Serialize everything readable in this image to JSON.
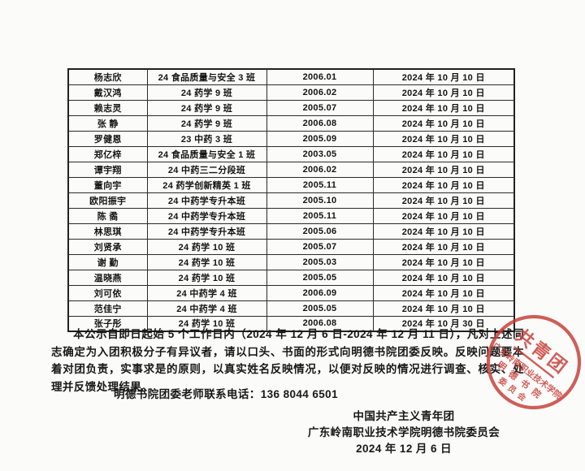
{
  "accent_colors": {
    "stamp_red": "#c63c35",
    "ink": "#181818",
    "table_border": "#2a2a2a",
    "page_bg": "#fbfbfa"
  },
  "table": {
    "columns": [
      "name",
      "class",
      "birth",
      "date"
    ],
    "rows": [
      {
        "name": "杨志欣",
        "class_name": "24 食品质量与安全 3 班",
        "birth": "2006.01",
        "date": "2024 年 10 月 10 日"
      },
      {
        "name": "戴汉鸿",
        "class_name": "24 药学 9 班",
        "birth": "2006.02",
        "date": "2024 年 10 月 10 日"
      },
      {
        "name": "赖志灵",
        "class_name": "24 药学 9 班",
        "birth": "2005.07",
        "date": "2024 年 10 月 10 日"
      },
      {
        "name": "张  静",
        "class_name": "24 药学 9 班",
        "birth": "2006.08",
        "date": "2024 年 10 月 10 日"
      },
      {
        "name": "罗健恩",
        "class_name": "23 中药 3 班",
        "birth": "2005.09",
        "date": "2024 年 10 月 10 日"
      },
      {
        "name": "郑亿梓",
        "class_name": "24 食品质量与安全 1 班",
        "birth": "2003.05",
        "date": "2024 年 10 月 10 日"
      },
      {
        "name": "谭宇翔",
        "class_name": "24 中药三二分段班",
        "birth": "2006.02",
        "date": "2024 年 10 月 10 日"
      },
      {
        "name": "董向宇",
        "class_name": "24 药学创新精英 1 班",
        "birth": "2005.11",
        "date": "2024 年 10 月 10 日"
      },
      {
        "name": "欧阳振宇",
        "class_name": "24 中药学专升本班",
        "birth": "2005.10",
        "date": "2024 年 10 月 10 日"
      },
      {
        "name": "陈  矞",
        "class_name": "24 中药学专升本班",
        "birth": "2005.11",
        "date": "2024 年 10 月 10 日"
      },
      {
        "name": "林思琪",
        "class_name": "24 中药学专升本班",
        "birth": "2005.06",
        "date": "2024 年 10 月 10 日"
      },
      {
        "name": "刘贤承",
        "class_name": "24 药学 10 班",
        "birth": "2005.07",
        "date": "2024 年 10 月 10 日"
      },
      {
        "name": "谢  勤",
        "class_name": "24 药学 10 班",
        "birth": "2005.03",
        "date": "2024 年 10 月 10 日"
      },
      {
        "name": "温晓燕",
        "class_name": "24 药学 10 班",
        "birth": "2005.05",
        "date": "2024 年 10 月 10 日"
      },
      {
        "name": "刘可依",
        "class_name": "24 中药学 4 班",
        "birth": "2006.09",
        "date": "2024 年 10 月 10 日"
      },
      {
        "name": "范佳宁",
        "class_name": "24 中药学 4 班",
        "birth": "2005.05",
        "date": "2024 年 10 月 10 日"
      },
      {
        "name": "张子彤",
        "class_name": "24 药学 10 班",
        "birth": "2006.08",
        "date": "2024 年 10 月 30 日"
      }
    ]
  },
  "notice_text": "本公示自即日起始 5 个工作日内（2024 年 12 月 6 日-2024 年 12 月 11 日），凡对上述同志确定为入团积极分子有异议者，请以口头、书面的形式向明德书院团委反映。反映问题要本着对团负责，实事求是的原则，以真实姓名反映情况，以便对反映的情况进行调查、核实、处理并反馈处理结果。",
  "contact_line": "明德书院团委老师联系电话：136  8044  6501",
  "signature": {
    "org_line1": "中国共产主义青年团",
    "org_line2": "广东岭南职业技术学院明德书院委员会",
    "date_line": "2024 年 12 月 6 日"
  },
  "stamp": {
    "center_text": "共青团",
    "line_school": "广东岭南职业技术学院",
    "line_college": "明 德 书 院",
    "line_committee": "委 员 会"
  }
}
